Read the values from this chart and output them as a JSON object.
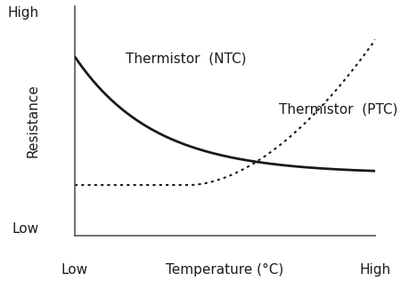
{
  "background_color": "#ffffff",
  "line_color": "#1a1a1a",
  "axis_color": "#555555",
  "ntc_label": "Thermistor  (NTC)",
  "ptc_label": "Thermistor  (PTC)",
  "xlabel_left": "Low",
  "xlabel_mid": "Temperature (°C)",
  "xlabel_right": "High",
  "ylabel_top": "High",
  "ylabel_mid": "Resistance",
  "ylabel_bot": "Low",
  "label_fontsize": 11,
  "tick_fontsize": 11,
  "axis_label_fontsize": 11,
  "figsize": [
    4.5,
    3.16
  ],
  "dpi": 100
}
